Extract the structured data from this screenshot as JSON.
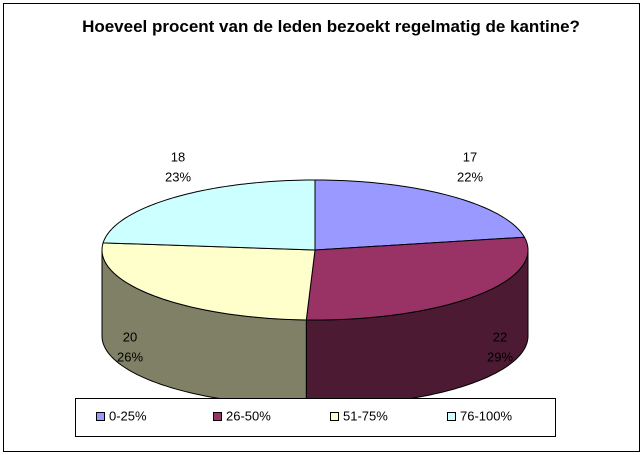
{
  "chart_data": {
    "type": "pie",
    "title": "Hoeveel procent van de leden bezoekt regelmatig de kantine?",
    "categories": [
      "0-25%",
      "26-50%",
      "51-75%",
      "76-100%"
    ],
    "values": [
      17,
      22,
      20,
      18
    ],
    "percent_labels": [
      "22%",
      "29%",
      "26%",
      "23%"
    ],
    "colors": [
      "#9999ff",
      "#993366",
      "#ffffcc",
      "#ccffff"
    ],
    "legend": "bottom"
  }
}
